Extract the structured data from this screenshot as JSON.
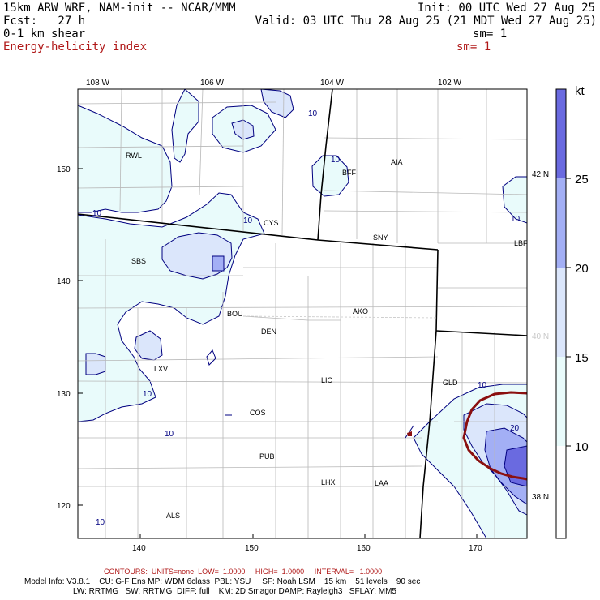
{
  "header": {
    "model": "15km ARW WRF, NAM-init -- NCAR/MMM",
    "init": "Init: 00 UTC Wed 27 Aug 25",
    "fcst_label": "Fcst:   27 h",
    "valid": "Valid: 03 UTC Thu 28 Aug 25 (21 MDT Wed 27 Aug 25)",
    "field1": "0-1 km shear",
    "sm1": "sm= 1",
    "field2": "Energy-helicity index",
    "sm2": "sm= 1"
  },
  "axes": {
    "lon_labels": [
      "108 W",
      "106 W",
      "104 W",
      "102 W"
    ],
    "grid_y_labels": [
      "150",
      "140",
      "130",
      "120"
    ],
    "grid_x_labels": [
      "140",
      "150",
      "160",
      "170"
    ],
    "lat_labels": [
      "42 N",
      "40 N",
      "38 N"
    ]
  },
  "stations": [
    "RWL",
    "BFF",
    "AIA",
    "CYS",
    "SNY",
    "LBF",
    "SBS",
    "BOU",
    "AKO",
    "DEN",
    "LXV",
    "LIC",
    "GLD",
    "COS",
    "PUB",
    "LHX",
    "LAA",
    "ALS"
  ],
  "contour_labels": [
    "10",
    "20"
  ],
  "colorbar": {
    "unit": "kt",
    "ticks": [
      "25",
      "20",
      "15",
      "10"
    ],
    "colors": [
      "#6a6ae0",
      "#a3aff5",
      "#dbe6fb",
      "#e9fbfb",
      "#ffffff"
    ]
  },
  "footer": {
    "contours": "CONTOURS:  UNITS=none  LOW=  1.0000     HIGH=  1.0000     INTERVAL=   1.0000",
    "model_info_1": "Model Info: V3.8.1    CU: G-F Ens MP: WDM 6class  PBL: YSU     SF: Noah LSM    15 km    51 levels    90 sec",
    "model_info_2": "LW: RRTMG   SW: RRTMG  DIFF: full    KM: 2D Smagor DAMP: Rayleigh3   SFLAY: MM5"
  }
}
